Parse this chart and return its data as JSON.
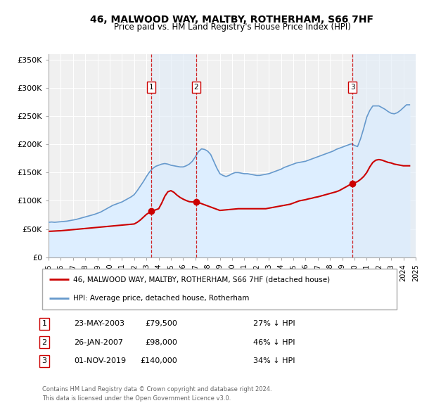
{
  "title": "46, MALWOOD WAY, MALTBY, ROTHERHAM, S66 7HF",
  "subtitle": "Price paid vs. HM Land Registry's House Price Index (HPI)",
  "ylim": [
    0,
    360000
  ],
  "xlim_start": 1995,
  "xlim_end": 2025,
  "yticks": [
    0,
    50000,
    100000,
    150000,
    200000,
    250000,
    300000,
    350000
  ],
  "ytick_labels": [
    "£0",
    "£50K",
    "£100K",
    "£150K",
    "£200K",
    "£250K",
    "£300K",
    "£350K"
  ],
  "xticks": [
    1995,
    1996,
    1997,
    1998,
    1999,
    2000,
    2001,
    2002,
    2003,
    2004,
    2005,
    2006,
    2007,
    2008,
    2009,
    2010,
    2011,
    2012,
    2013,
    2014,
    2015,
    2016,
    2017,
    2018,
    2019,
    2020,
    2021,
    2022,
    2023,
    2024,
    2025
  ],
  "sale_color": "#cc0000",
  "hpi_color": "#6699cc",
  "hpi_fill_color": "#ddeeff",
  "background_color": "#f0f0f0",
  "grid_color": "#ffffff",
  "sale_label": "46, MALWOOD WAY, MALTBY, ROTHERHAM, S66 7HF (detached house)",
  "hpi_label": "HPI: Average price, detached house, Rotherham",
  "transactions": [
    {
      "num": 1,
      "date": "23-MAY-2003",
      "price": 79500,
      "year": 2003.38,
      "pct": "27% ↓ HPI"
    },
    {
      "num": 2,
      "date": "26-JAN-2007",
      "price": 98000,
      "year": 2007.07,
      "pct": "46% ↓ HPI"
    },
    {
      "num": 3,
      "date": "01-NOV-2019",
      "price": 140000,
      "year": 2019.83,
      "pct": "34% ↓ HPI"
    }
  ],
  "footnote1": "Contains HM Land Registry data © Crown copyright and database right 2024.",
  "footnote2": "This data is licensed under the Open Government Licence v3.0.",
  "hpi_data_x": [
    1995.0,
    1995.25,
    1995.5,
    1995.75,
    1996.0,
    1996.25,
    1996.5,
    1996.75,
    1997.0,
    1997.25,
    1997.5,
    1997.75,
    1998.0,
    1998.25,
    1998.5,
    1998.75,
    1999.0,
    1999.25,
    1999.5,
    1999.75,
    2000.0,
    2000.25,
    2000.5,
    2000.75,
    2001.0,
    2001.25,
    2001.5,
    2001.75,
    2002.0,
    2002.25,
    2002.5,
    2002.75,
    2003.0,
    2003.25,
    2003.5,
    2003.75,
    2004.0,
    2004.25,
    2004.5,
    2004.75,
    2005.0,
    2005.25,
    2005.5,
    2005.75,
    2006.0,
    2006.25,
    2006.5,
    2006.75,
    2007.0,
    2007.25,
    2007.5,
    2007.75,
    2008.0,
    2008.25,
    2008.5,
    2008.75,
    2009.0,
    2009.25,
    2009.5,
    2009.75,
    2010.0,
    2010.25,
    2010.5,
    2010.75,
    2011.0,
    2011.25,
    2011.5,
    2011.75,
    2012.0,
    2012.25,
    2012.5,
    2012.75,
    2013.0,
    2013.25,
    2013.5,
    2013.75,
    2014.0,
    2014.25,
    2014.5,
    2014.75,
    2015.0,
    2015.25,
    2015.5,
    2015.75,
    2016.0,
    2016.25,
    2016.5,
    2016.75,
    2017.0,
    2017.25,
    2017.5,
    2017.75,
    2018.0,
    2018.25,
    2018.5,
    2018.75,
    2019.0,
    2019.25,
    2019.5,
    2019.75,
    2020.0,
    2020.25,
    2020.5,
    2020.75,
    2021.0,
    2021.25,
    2021.5,
    2021.75,
    2022.0,
    2022.25,
    2022.5,
    2022.75,
    2023.0,
    2023.25,
    2023.5,
    2023.75,
    2024.0,
    2024.25,
    2024.5
  ],
  "hpi_data_y": [
    62000,
    62500,
    62000,
    62500,
    63000,
    63500,
    64000,
    65000,
    66000,
    67000,
    68500,
    70000,
    71500,
    73000,
    74500,
    76000,
    78000,
    80000,
    83000,
    86000,
    89000,
    92000,
    94000,
    96000,
    98000,
    101000,
    104000,
    107000,
    111000,
    118000,
    126000,
    134000,
    143000,
    151000,
    157000,
    161000,
    163000,
    165000,
    166000,
    165000,
    163000,
    162000,
    161000,
    160000,
    160000,
    162000,
    165000,
    170000,
    178000,
    187000,
    192000,
    191000,
    188000,
    182000,
    170000,
    158000,
    148000,
    145000,
    143000,
    145000,
    148000,
    150000,
    150000,
    149000,
    148000,
    148000,
    147000,
    146000,
    145000,
    145000,
    146000,
    147000,
    148000,
    150000,
    152000,
    154000,
    156000,
    159000,
    161000,
    163000,
    165000,
    167000,
    168000,
    169000,
    170000,
    172000,
    174000,
    176000,
    178000,
    180000,
    182000,
    184000,
    186000,
    188000,
    191000,
    193000,
    195000,
    197000,
    199000,
    201000,
    198000,
    196000,
    210000,
    228000,
    248000,
    260000,
    268000,
    268000,
    268000,
    265000,
    262000,
    258000,
    255000,
    254000,
    256000,
    260000,
    265000,
    270000,
    270000
  ],
  "sale_data_x": [
    1995.0,
    1995.25,
    1995.5,
    1995.75,
    1996.0,
    1996.25,
    1996.5,
    1996.75,
    1997.0,
    1997.25,
    1997.5,
    1997.75,
    1998.0,
    1998.25,
    1998.5,
    1998.75,
    1999.0,
    1999.25,
    1999.5,
    1999.75,
    2000.0,
    2000.25,
    2000.5,
    2000.75,
    2001.0,
    2001.25,
    2001.5,
    2001.75,
    2002.0,
    2002.25,
    2002.5,
    2002.75,
    2003.0,
    2003.25,
    2003.5,
    2003.75,
    2004.0,
    2004.25,
    2004.5,
    2004.75,
    2005.0,
    2005.25,
    2005.5,
    2005.75,
    2006.0,
    2006.25,
    2006.5,
    2006.75,
    2007.0,
    2007.25,
    2007.5,
    2007.75,
    2008.0,
    2008.25,
    2008.5,
    2008.75,
    2009.0,
    2009.25,
    2009.5,
    2009.75,
    2010.0,
    2010.25,
    2010.5,
    2010.75,
    2011.0,
    2011.25,
    2011.5,
    2011.75,
    2012.0,
    2012.25,
    2012.5,
    2012.75,
    2013.0,
    2013.25,
    2013.5,
    2013.75,
    2014.0,
    2014.25,
    2014.5,
    2014.75,
    2015.0,
    2015.25,
    2015.5,
    2015.75,
    2016.0,
    2016.25,
    2016.5,
    2016.75,
    2017.0,
    2017.25,
    2017.5,
    2017.75,
    2018.0,
    2018.25,
    2018.5,
    2018.75,
    2019.0,
    2019.25,
    2019.5,
    2019.75,
    2020.0,
    2020.25,
    2020.5,
    2020.75,
    2021.0,
    2021.25,
    2021.5,
    2021.75,
    2022.0,
    2022.25,
    2022.5,
    2022.75,
    2023.0,
    2023.25,
    2023.5,
    2023.75,
    2024.0,
    2024.25,
    2024.5
  ],
  "sale_data_y": [
    46000,
    46200,
    46500,
    46800,
    47000,
    47500,
    48000,
    48500,
    49000,
    49500,
    50000,
    50500,
    51000,
    51500,
    52000,
    52500,
    53000,
    53500,
    54000,
    54500,
    55000,
    55500,
    56000,
    56500,
    57000,
    57500,
    58000,
    58500,
    59000,
    62000,
    66000,
    71000,
    76000,
    79500,
    82000,
    84000,
    86000,
    96000,
    108000,
    116000,
    118000,
    115000,
    110000,
    106000,
    103000,
    100500,
    98500,
    98000,
    98000,
    97000,
    95000,
    93000,
    91000,
    89000,
    87000,
    85000,
    83000,
    83500,
    84000,
    84500,
    85000,
    85500,
    86000,
    86000,
    86000,
    86000,
    86000,
    86000,
    86000,
    86000,
    86000,
    86000,
    87000,
    88000,
    89000,
    90000,
    91000,
    92000,
    93000,
    94000,
    96000,
    98000,
    100000,
    101000,
    102000,
    103500,
    104500,
    106000,
    107000,
    108500,
    110000,
    111500,
    113000,
    114500,
    116000,
    118000,
    121000,
    124000,
    127000,
    130000,
    132000,
    134000,
    138000,
    143000,
    150000,
    160000,
    168000,
    172000,
    173000,
    172000,
    170000,
    168000,
    167000,
    165000,
    164000,
    163000,
    162000,
    162000,
    162000
  ]
}
